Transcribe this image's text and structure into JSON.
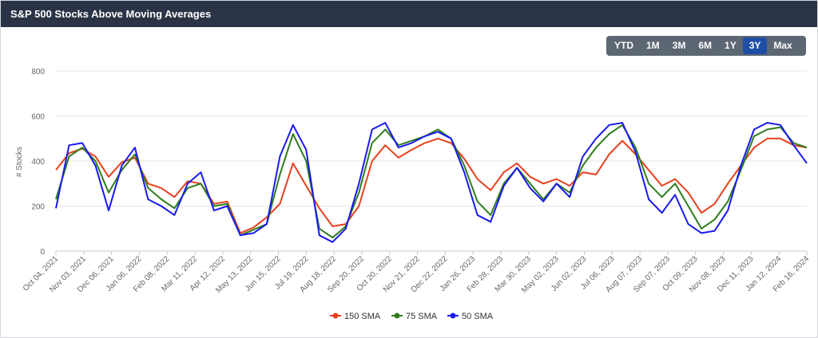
{
  "header": {
    "title": "S&P 500 Stocks Above Moving Averages"
  },
  "range_buttons": [
    {
      "label": "YTD",
      "active": false
    },
    {
      "label": "1M",
      "active": false
    },
    {
      "label": "3M",
      "active": false
    },
    {
      "label": "6M",
      "active": false
    },
    {
      "label": "1Y",
      "active": false
    },
    {
      "label": "3Y",
      "active": true
    },
    {
      "label": "Max",
      "active": false
    }
  ],
  "chart_data": {
    "type": "line",
    "title": "S&P 500 Stocks Above Moving Averages",
    "ylabel": "# Stocks",
    "xlabel": "",
    "ylim": [
      0,
      800
    ],
    "yticks": [
      0,
      200,
      400,
      600,
      800
    ],
    "grid": true,
    "legend": "bottom-center",
    "x_ticks": [
      "Oct 04, 2021",
      "Nov 03, 2021",
      "Dec 06, 2021",
      "Jan 06, 2022",
      "Feb 08, 2022",
      "Mar 11, 2022",
      "Apr 12, 2022",
      "May 13, 2022",
      "Jun 15, 2022",
      "Jul 19, 2022",
      "Aug 18, 2022",
      "Sep 20, 2022",
      "Oct 20, 2022",
      "Nov 21, 2022",
      "Dec 22, 2022",
      "Jan 26, 2023",
      "Feb 28, 2023",
      "Mar 30, 2023",
      "May 02, 2023",
      "Jun 02, 2023",
      "Jul 06, 2023",
      "Aug 07, 2023",
      "Sep 07, 2023",
      "Oct 09, 2023",
      "Nov 08, 2023",
      "Dec 11, 2023",
      "Jan 12, 2024",
      "Feb 16, 2024"
    ],
    "series": [
      {
        "name": "150 SMA",
        "color": "#e8401c",
        "values": [
          360,
          435,
          455,
          420,
          330,
          395,
          415,
          300,
          280,
          240,
          310,
          300,
          210,
          220,
          80,
          105,
          150,
          210,
          390,
          290,
          190,
          110,
          120,
          200,
          400,
          470,
          415,
          450,
          480,
          500,
          480,
          410,
          320,
          270,
          350,
          390,
          330,
          300,
          320,
          290,
          350,
          340,
          430,
          490,
          430,
          360,
          290,
          320,
          260,
          170,
          210,
          300,
          380,
          460,
          500,
          500,
          470,
          460
        ]
      },
      {
        "name": "75 SMA",
        "color": "#2e7d1e",
        "values": [
          230,
          420,
          460,
          400,
          260,
          360,
          430,
          280,
          230,
          190,
          280,
          300,
          200,
          210,
          70,
          95,
          120,
          340,
          520,
          400,
          100,
          60,
          110,
          260,
          480,
          540,
          470,
          490,
          510,
          540,
          500,
          380,
          220,
          160,
          300,
          370,
          300,
          230,
          300,
          260,
          380,
          460,
          520,
          560,
          460,
          300,
          240,
          300,
          200,
          100,
          140,
          220,
          360,
          510,
          540,
          550,
          480,
          460
        ]
      },
      {
        "name": "50 SMA",
        "color": "#1a1aef",
        "values": [
          190,
          470,
          480,
          380,
          180,
          380,
          460,
          230,
          200,
          160,
          300,
          350,
          180,
          200,
          70,
          80,
          120,
          420,
          560,
          450,
          70,
          40,
          100,
          300,
          540,
          570,
          460,
          480,
          510,
          530,
          500,
          350,
          160,
          130,
          290,
          370,
          280,
          220,
          300,
          240,
          420,
          500,
          560,
          570,
          440,
          230,
          170,
          250,
          120,
          80,
          90,
          180,
          380,
          540,
          570,
          560,
          470,
          390
        ]
      }
    ]
  }
}
